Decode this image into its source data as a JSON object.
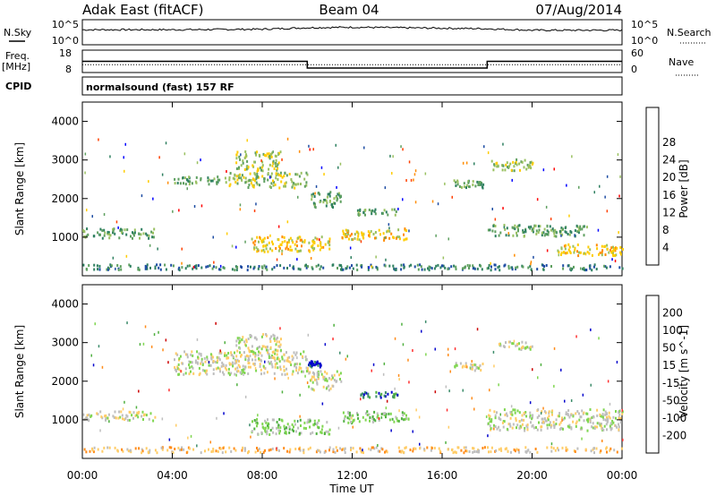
{
  "header": {
    "station": "Adak East (fitACF)",
    "beam": "Beam 04",
    "date": "07/Aug/2014"
  },
  "noise_panel": {
    "left_label": "N.Sky",
    "right_label": "N.Search",
    "left_ticks": [
      "10^5",
      "10^0"
    ],
    "right_ticks": [
      "10^5",
      "10^0"
    ]
  },
  "freq_panel": {
    "left_label": "Freq.",
    "unit_label": "[MHz]",
    "left_ticks": [
      "18",
      "8"
    ],
    "right_ticks": [
      "60",
      "0"
    ],
    "right_label": "Nave"
  },
  "cpid_panel": {
    "left_label": "CPID",
    "mode_text": "normalsound (fast) 157 RF"
  },
  "colors": {
    "power_scale": [
      "#0000ff",
      "#1e4da3",
      "#2f8060",
      "#5fa060",
      "#99c060",
      "#ffcc00",
      "#ff8c00",
      "#ff4000",
      "#ff0000"
    ],
    "velocity_scale": [
      "#cc0000",
      "#ff3030",
      "#ff8c1a",
      "#ffcc66",
      "#bebebe",
      "#7fd650",
      "#4fb040",
      "#3c8c6a",
      "#0000cc"
    ]
  },
  "chart_data": [
    {
      "type": "line",
      "title": "N.Sky / N.Search",
      "x": [
        "00:00",
        "04:00",
        "08:00",
        "10:00",
        "12:00",
        "16:00",
        "18:00",
        "20:00",
        "00:00"
      ],
      "series": [
        {
          "name": "N.Sky",
          "values": [
            3.0,
            3.0,
            3.1,
            3.4,
            3.5,
            3.3,
            3.2,
            2.9,
            2.9
          ]
        }
      ],
      "ylim": [
        0,
        5
      ]
    },
    {
      "type": "line",
      "x": [
        "00:00",
        "10:00",
        "10:00",
        "18:00",
        "18:00",
        "00:00"
      ],
      "series": [
        {
          "name": "Freq.",
          "values": [
            13,
            13,
            10,
            10,
            13,
            13
          ]
        },
        {
          "name": "Nave",
          "values": [
            21,
            21,
            21,
            21,
            21,
            21
          ]
        }
      ],
      "ylim": [
        8,
        18
      ]
    },
    {
      "type": "heatmap",
      "ylabel": "Slant Range [km]",
      "xlabel": "Time UT",
      "x_ticks": [
        "00:00",
        "04:00",
        "08:00",
        "12:00",
        "16:00",
        "20:00",
        "00:00"
      ],
      "y_ticks": [
        "1000",
        "2000",
        "3000",
        "4000"
      ],
      "colorbar_label": "Power [dB]",
      "colorbar_ticks": [
        "4",
        "8",
        "12",
        "16",
        "20",
        "24",
        "28"
      ],
      "patches": [
        {
          "t0": 6.5,
          "t1": 10.0,
          "r0": 2300,
          "r1": 2700,
          "level": 4
        },
        {
          "t0": 4.0,
          "t1": 6.5,
          "r0": 2400,
          "r1": 2600,
          "level": 3
        },
        {
          "t0": 6.8,
          "t1": 8.8,
          "r0": 2750,
          "r1": 3250,
          "level": 4
        },
        {
          "t0": 10.0,
          "t1": 11.5,
          "r0": 1800,
          "r1": 2200,
          "level": 3
        },
        {
          "t0": 12.2,
          "t1": 14.0,
          "r0": 1600,
          "r1": 1750,
          "level": 3
        },
        {
          "t0": 7.5,
          "t1": 11.0,
          "r0": 650,
          "r1": 1050,
          "level": 5
        },
        {
          "t0": 11.5,
          "t1": 14.5,
          "r0": 950,
          "r1": 1250,
          "level": 5
        },
        {
          "t0": 0.0,
          "t1": 3.2,
          "r0": 1000,
          "r1": 1250,
          "level": 3
        },
        {
          "t0": 16.5,
          "t1": 17.8,
          "r0": 2300,
          "r1": 2500,
          "level": 3
        },
        {
          "t0": 18.0,
          "t1": 20.0,
          "r0": 2750,
          "r1": 3050,
          "level": 4
        },
        {
          "t0": 18.0,
          "t1": 22.5,
          "r0": 1050,
          "r1": 1350,
          "level": 3
        },
        {
          "t0": 21.0,
          "t1": 24.0,
          "r0": 550,
          "r1": 850,
          "level": 5
        },
        {
          "t0": 0.0,
          "t1": 24.0,
          "r0": 180,
          "r1": 320,
          "level": 2
        }
      ]
    },
    {
      "type": "heatmap",
      "ylabel": "Slant Range [km]",
      "xlabel": "Time UT",
      "x_ticks": [
        "00:00",
        "04:00",
        "08:00",
        "12:00",
        "16:00",
        "20:00",
        "00:00"
      ],
      "y_ticks": [
        "1000",
        "2000",
        "3000",
        "4000"
      ],
      "colorbar_label": "Velocity [m s^-1]",
      "colorbar_ticks": [
        "-200",
        "-100",
        "-50",
        "-15",
        "15",
        "50",
        "100",
        "200"
      ],
      "patches": [
        {
          "t0": 4.0,
          "t1": 10.0,
          "r0": 2200,
          "r1": 2800,
          "level": 4
        },
        {
          "t0": 6.8,
          "t1": 8.8,
          "r0": 2750,
          "r1": 3250,
          "level": 4
        },
        {
          "t0": 10.0,
          "t1": 11.5,
          "r0": 1800,
          "r1": 2300,
          "level": 4
        },
        {
          "t0": 10.0,
          "t1": 10.6,
          "r0": 2400,
          "r1": 2550,
          "level": 8
        },
        {
          "t0": 12.2,
          "t1": 14.0,
          "r0": 1600,
          "r1": 1750,
          "level": 7
        },
        {
          "t0": 7.5,
          "t1": 11.0,
          "r0": 650,
          "r1": 1050,
          "level": 5
        },
        {
          "t0": 11.5,
          "t1": 14.5,
          "r0": 950,
          "r1": 1250,
          "level": 5
        },
        {
          "t0": 0.0,
          "t1": 3.2,
          "r0": 1000,
          "r1": 1250,
          "level": 4
        },
        {
          "t0": 16.5,
          "t1": 17.8,
          "r0": 2300,
          "r1": 2500,
          "level": 4
        },
        {
          "t0": 18.5,
          "t1": 20.0,
          "r0": 2850,
          "r1": 3050,
          "level": 4
        },
        {
          "t0": 18.0,
          "t1": 24.0,
          "r0": 750,
          "r1": 1300,
          "level": 4
        },
        {
          "t0": 0.0,
          "t1": 24.0,
          "r0": 180,
          "r1": 320,
          "level": 3
        }
      ]
    }
  ]
}
